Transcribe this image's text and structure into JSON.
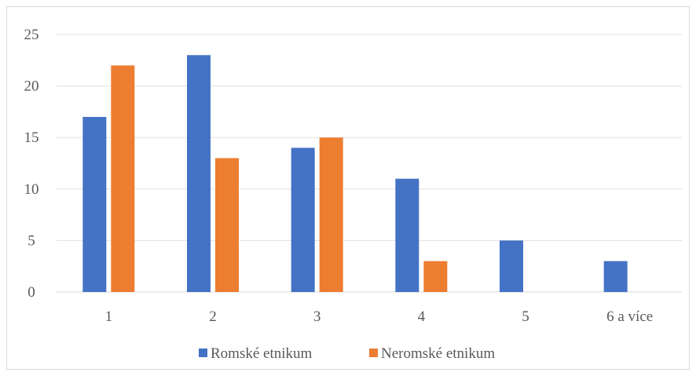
{
  "chart_data": {
    "type": "bar",
    "categories": [
      "1",
      "2",
      "3",
      "4",
      "5",
      "6 a více"
    ],
    "series": [
      {
        "name": "Romské etnikum",
        "values": [
          17,
          23,
          14,
          11,
          5,
          3
        ],
        "color": "#4472c4"
      },
      {
        "name": "Neromské etnikum",
        "values": [
          22,
          13,
          15,
          3,
          0,
          0
        ],
        "color": "#ed7d31"
      }
    ],
    "title": "",
    "xlabel": "",
    "ylabel": "",
    "ylim": [
      0,
      25
    ],
    "yticks": [
      0,
      5,
      10,
      15,
      20,
      25
    ],
    "grid": true,
    "legend_position": "bottom"
  }
}
